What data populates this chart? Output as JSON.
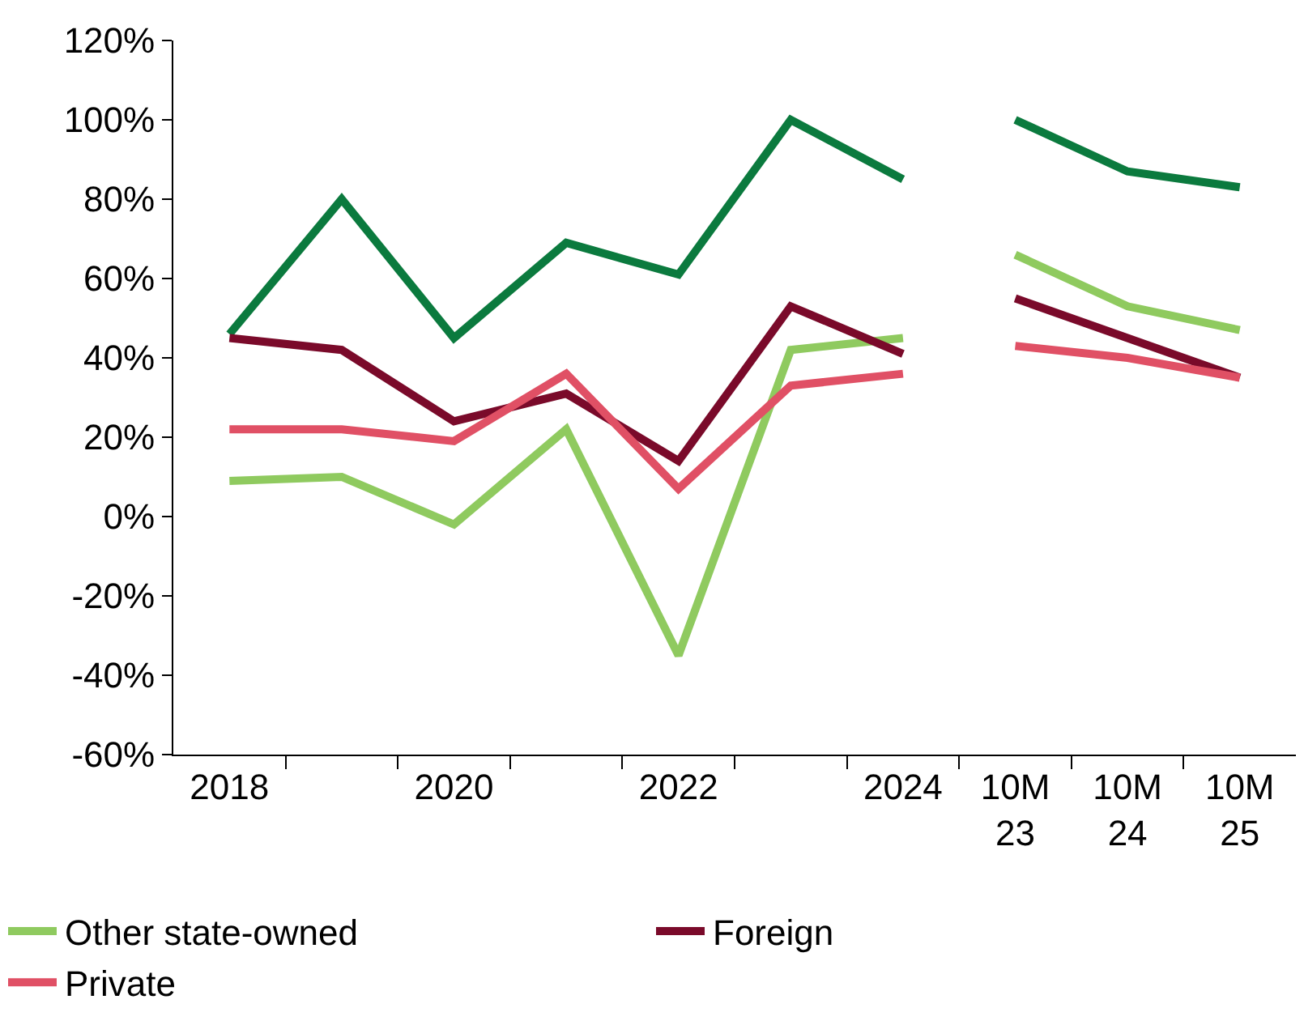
{
  "chart_data": {
    "type": "line",
    "categories": [
      "2018",
      null,
      "2020",
      null,
      "2022",
      null,
      "2024",
      "10M\n23",
      "10M\n24",
      "10M\n25"
    ],
    "series": [
      {
        "color": "#0b7a3e",
        "values": [
          46,
          80,
          45,
          69,
          61,
          100,
          85,
          null,
          null,
          null
        ]
      },
      {
        "name": "Other state-owned",
        "color": "#8fca5f",
        "values": [
          9,
          10,
          -2,
          22,
          -35,
          42,
          45,
          null,
          null,
          null
        ]
      },
      {
        "name": "Foreign",
        "color": "#7a0a2a",
        "values": [
          45,
          42,
          24,
          31,
          14,
          53,
          41,
          null,
          null,
          null
        ]
      },
      {
        "name": "Private",
        "color": "#e05065",
        "values": [
          22,
          22,
          19,
          36,
          7,
          33,
          36,
          null,
          null,
          null
        ]
      },
      {
        "color": "#0b7a3e",
        "values": [
          null,
          null,
          null,
          null,
          null,
          null,
          null,
          100,
          87,
          83
        ]
      },
      {
        "color": "#8fca5f",
        "values": [
          null,
          null,
          null,
          null,
          null,
          null,
          null,
          66,
          53,
          47
        ]
      },
      {
        "color": "#7a0a2a",
        "values": [
          null,
          null,
          null,
          null,
          null,
          null,
          null,
          55,
          45,
          35
        ]
      },
      {
        "color": "#e05065",
        "values": [
          null,
          null,
          null,
          null,
          null,
          null,
          null,
          43,
          40,
          35
        ]
      }
    ],
    "ylim": [
      -60,
      120
    ],
    "yticks": [
      {
        "value": -60,
        "label": "-60%"
      },
      {
        "value": -40,
        "label": "-40%"
      },
      {
        "value": -20,
        "label": "-20%"
      },
      {
        "value": 0,
        "label": "0%"
      },
      {
        "value": 20,
        "label": "20%"
      },
      {
        "value": 40,
        "label": "40%"
      },
      {
        "value": 60,
        "label": "60%"
      },
      {
        "value": 80,
        "label": "80%"
      },
      {
        "value": 100,
        "label": "100%"
      },
      {
        "value": 120,
        "label": "120%"
      }
    ],
    "legend": "bottom",
    "marker": "none",
    "line_style": "solid"
  }
}
